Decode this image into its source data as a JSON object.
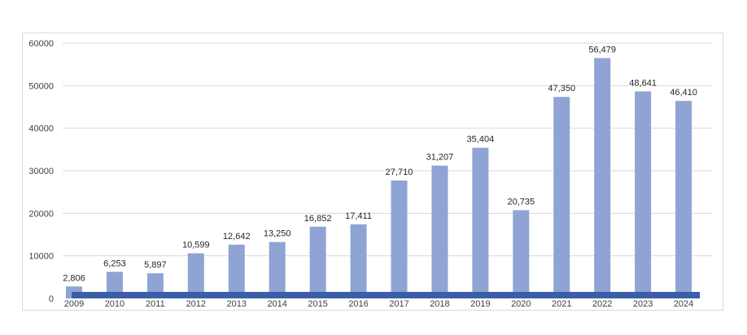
{
  "chart_data": {
    "type": "bar",
    "title": "",
    "xlabel": "",
    "ylabel": "",
    "categories": [
      "2009",
      "2010",
      "2011",
      "2012",
      "2013",
      "2014",
      "2015",
      "2016",
      "2017",
      "2018",
      "2019",
      "2020",
      "2021",
      "2022",
      "2023",
      "2024"
    ],
    "values": [
      2806,
      6253,
      5897,
      10599,
      12642,
      13250,
      16852,
      17411,
      27710,
      31207,
      35404,
      20735,
      47350,
      56479,
      48641,
      46410
    ],
    "value_labels": [
      "2,806",
      "6,253",
      "5,897",
      "10,599",
      "12,642",
      "13,250",
      "16,852",
      "17,411",
      "27,710",
      "31,207",
      "35,404",
      "20,735",
      "47,350",
      "56,479",
      "48,641",
      "46,410"
    ],
    "ylim": [
      0,
      60000
    ],
    "yticks": [
      0,
      10000,
      20000,
      30000,
      40000,
      50000,
      60000
    ],
    "ytick_labels": [
      "0",
      "10000",
      "20000",
      "30000",
      "40000",
      "50000",
      "60000"
    ],
    "grid": true,
    "legend": "none",
    "colors": {
      "bar": "#8fa4d4",
      "baseline_band": "#3a5fa8",
      "grid": "#d9d9d9"
    }
  }
}
